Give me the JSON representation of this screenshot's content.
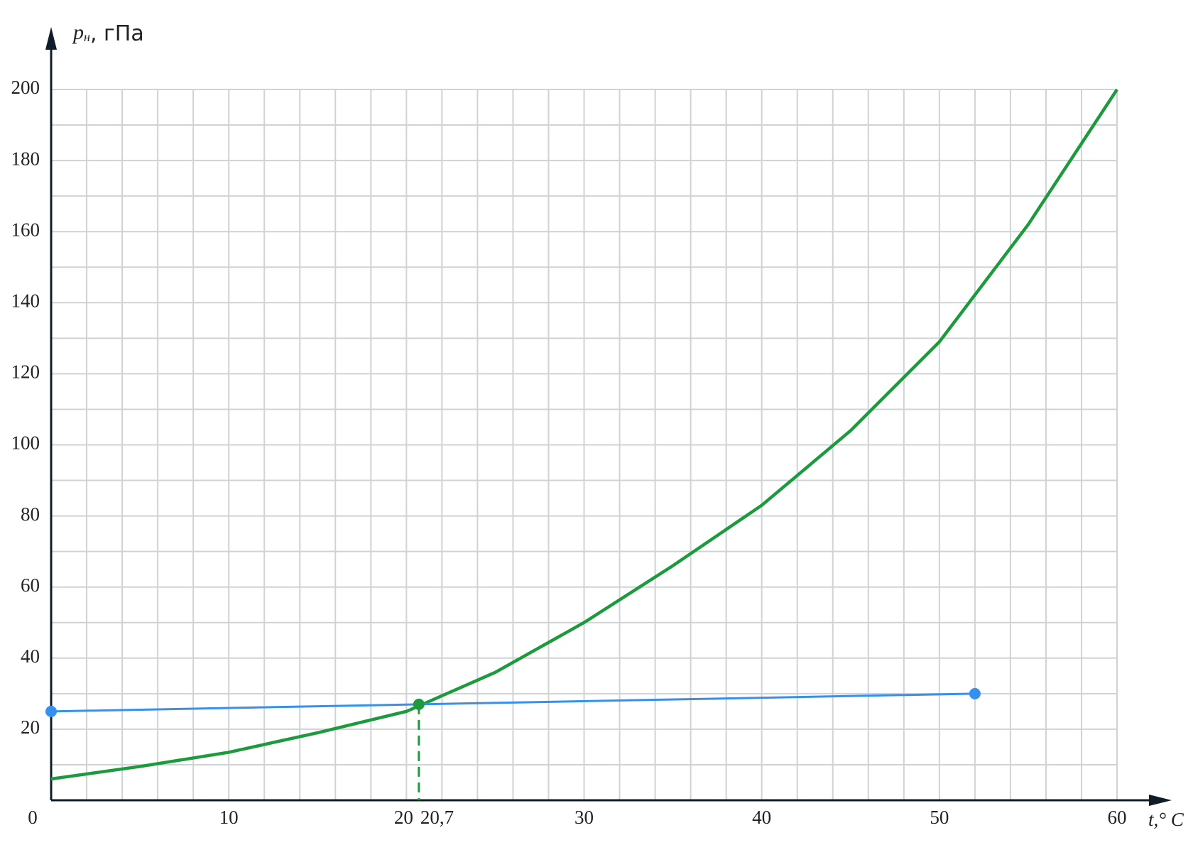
{
  "chart_data": {
    "type": "line",
    "x_label": "t,° C",
    "y_label": {
      "symbol": "p",
      "subscript": "н",
      "unit": ", гПа"
    },
    "xlim": [
      0,
      60
    ],
    "ylim": [
      0,
      200
    ],
    "xticks": [
      0,
      10,
      20,
      {
        "value": 20.7,
        "label": "20,7"
      },
      30,
      40,
      50,
      60
    ],
    "yticks": [
      20,
      40,
      60,
      80,
      100,
      120,
      140,
      160,
      180,
      200
    ],
    "grid": true,
    "xgrid_step": 2,
    "ygrid_step": 10,
    "series": [
      {
        "color": "#1e9a3e",
        "x": [
          0,
          5,
          10,
          15,
          20,
          25,
          30,
          35,
          40,
          45,
          50,
          55,
          60
        ],
        "values": [
          6,
          9.5,
          13.5,
          19,
          25,
          36,
          50,
          66,
          83,
          104,
          129,
          162,
          200
        ],
        "markers": false
      },
      {
        "color": "#3590f0",
        "x": [
          0,
          52
        ],
        "values": [
          25,
          30
        ],
        "markers": true
      },
      {
        "color": "#1e9a3e",
        "x": [
          20.7
        ],
        "values": [
          27
        ],
        "markers": true,
        "drop_line": true
      }
    ]
  }
}
